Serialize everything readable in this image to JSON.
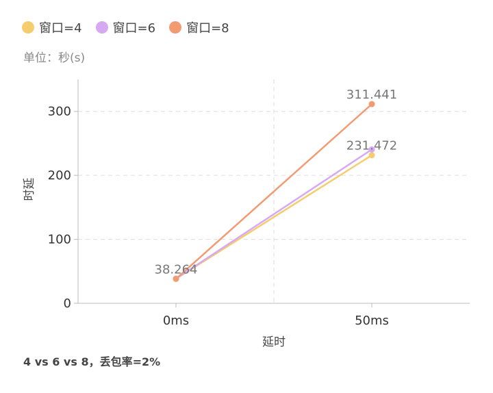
{
  "legend": [
    {
      "label": "窗口=4",
      "color": "#F5CC6E"
    },
    {
      "label": "窗口=6",
      "color": "#D7A9F2"
    },
    {
      "label": "窗口=8",
      "color": "#F29B72"
    }
  ],
  "unit_label": "单位：秒(s)",
  "caption": "4 vs 6 vs 8，丢包率=2%",
  "chart_data": {
    "type": "line",
    "categories": [
      "0ms",
      "50ms"
    ],
    "xlabel": "延时",
    "ylabel": "时延",
    "ylim": [
      0,
      350
    ],
    "yticks": [
      0,
      100,
      200,
      300
    ],
    "grid": true,
    "legend_position": "top-left",
    "series": [
      {
        "name": "窗口=4",
        "color": "#F5CC6E",
        "values": [
          38.264,
          231.472
        ]
      },
      {
        "name": "窗口=6",
        "color": "#D7A9F2",
        "values": [
          38.5,
          240.5
        ]
      },
      {
        "name": "窗口=8",
        "color": "#F29B72",
        "values": [
          38.264,
          311.441
        ]
      }
    ],
    "data_labels": [
      {
        "series": 2,
        "index": 0,
        "text": "38.264"
      },
      {
        "series": 2,
        "index": 1,
        "text": "311.441"
      },
      {
        "series": 0,
        "index": 1,
        "text": "231.472"
      }
    ]
  }
}
